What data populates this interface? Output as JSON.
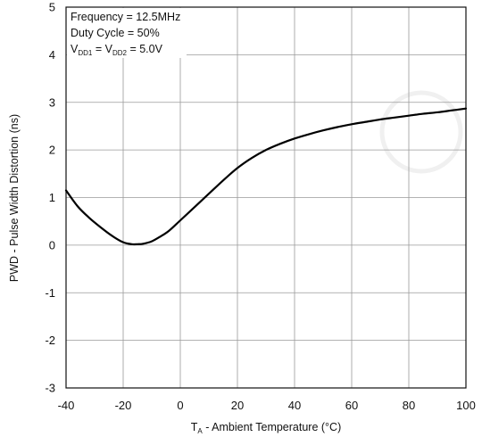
{
  "chart_data": {
    "type": "line",
    "xlabel_prefix": "T",
    "xlabel_subscript": "A",
    "xlabel_rest": " - Ambient Temperature (°C)",
    "ylabel": "PWD - Pulse Width Distortion (ns)",
    "xlim": [
      -40,
      100
    ],
    "ylim": [
      -3,
      5
    ],
    "xticks": [
      "-40",
      "-20",
      "0",
      "20",
      "40",
      "60",
      "80",
      "100"
    ],
    "yticks": [
      "5",
      "4",
      "3",
      "2",
      "1",
      "0",
      "-1",
      "-2",
      "-3"
    ],
    "grid": true,
    "annotation": {
      "line1": "Frequency = 12.5MHz",
      "line2": "Duty Cycle = 50%",
      "v_main": "V",
      "v_sub1": "DD1",
      "v_eq": " = V",
      "v_sub2": "DD2",
      "v_val": " = 5.0V"
    },
    "series": [
      {
        "x": [
          -40,
          -36,
          -32,
          -28,
          -24,
          -20,
          -17,
          -15,
          -13,
          -10,
          -7,
          -4,
          0,
          5,
          10,
          15,
          20,
          25,
          30,
          35,
          40,
          45,
          50,
          55,
          60,
          65,
          70,
          75,
          80,
          85,
          90,
          95,
          100
        ],
        "y": [
          1.15,
          0.82,
          0.58,
          0.38,
          0.2,
          0.06,
          0.02,
          0.02,
          0.03,
          0.08,
          0.18,
          0.3,
          0.52,
          0.8,
          1.08,
          1.36,
          1.62,
          1.83,
          2.0,
          2.13,
          2.24,
          2.33,
          2.41,
          2.48,
          2.54,
          2.59,
          2.64,
          2.68,
          2.72,
          2.76,
          2.79,
          2.83,
          2.87
        ]
      }
    ]
  }
}
